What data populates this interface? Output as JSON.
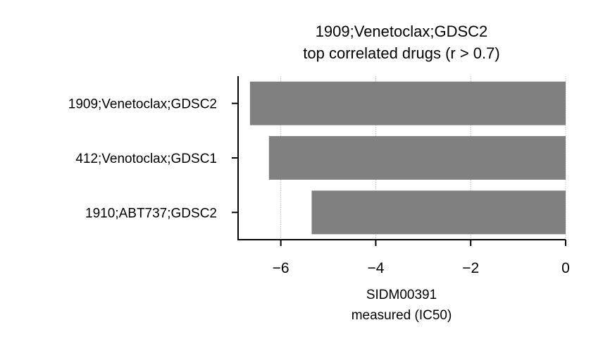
{
  "chart_data": {
    "type": "bar",
    "orientation": "horizontal",
    "title": "1909;Venetoclax;GDSC2",
    "subtitle": "top correlated drugs (r > 0.7)",
    "xlabel": "SIDM00391",
    "xlabel_line2": "measured (IC50)",
    "ylabel": "",
    "categories": [
      "1909;Venetoclax;GDSC2",
      "412;Venotoclax;GDSC1",
      "1910;ABT737;GDSC2"
    ],
    "values": [
      -6.65,
      -6.25,
      -5.35
    ],
    "xlim": [
      -6.9,
      0
    ],
    "xticks": [
      -6,
      -4,
      -2,
      0
    ],
    "xtick_labels": [
      "−6",
      "−4",
      "−2",
      "0"
    ],
    "grid": "vertical dotted",
    "bar_color": "#808080"
  }
}
